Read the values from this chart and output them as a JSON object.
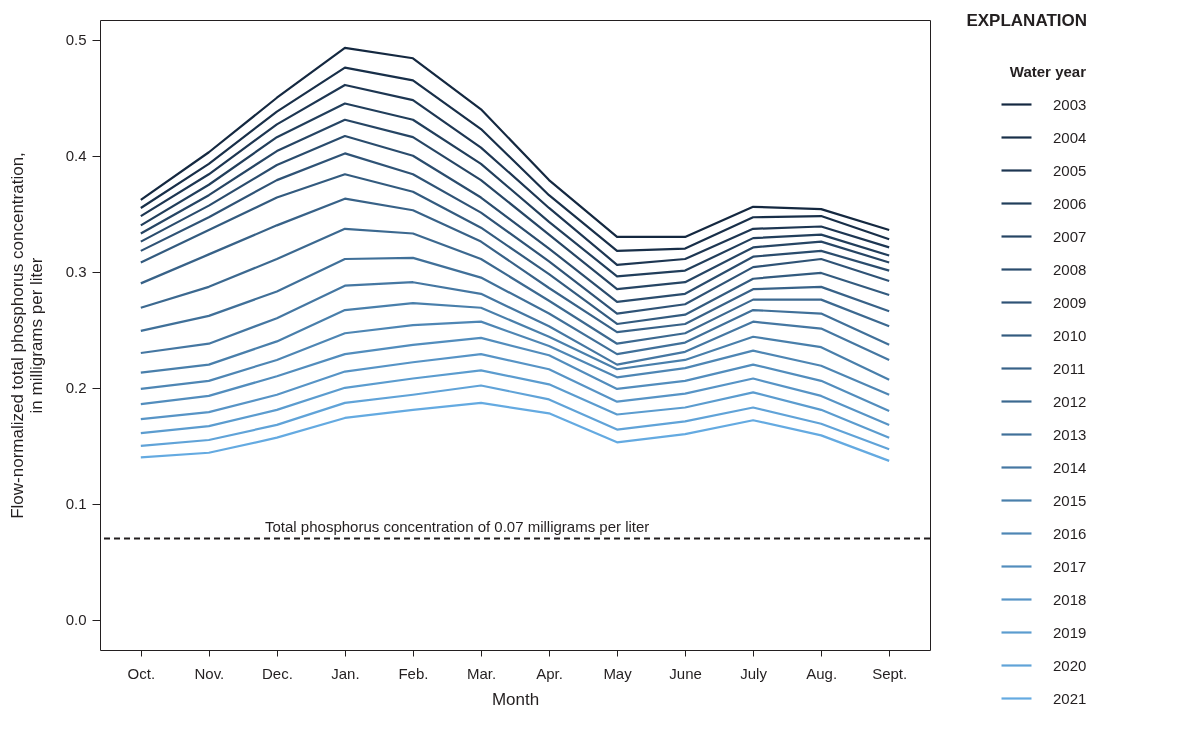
{
  "chart_data": {
    "type": "line",
    "categories": [
      "Oct.",
      "Nov.",
      "Dec.",
      "Jan.",
      "Feb.",
      "Mar.",
      "Apr.",
      "May",
      "June",
      "July",
      "Aug.",
      "Sept."
    ],
    "xlabel": "Month",
    "ylabel": "Flow-normalized total phosphorus concentration, in milligrams per liter",
    "legend_title": "Water year",
    "annotations": [
      "EXPLANATION"
    ],
    "ylim": [
      -0.026,
      0.517
    ],
    "yticks": [
      {
        "value": 0,
        "label": "0.0"
      },
      0.1,
      0.2,
      0.3,
      0.4,
      0.5
    ],
    "grid": false,
    "legend": "right",
    "line_style": "solid",
    "ref_lines": [
      {
        "axis": "y",
        "value": 0.07,
        "label": "Total phosphorus concentration of 0.07 milligrams per liter",
        "color": "#231f20",
        "line_style": "dashed"
      }
    ],
    "series": [
      {
        "name": "2003",
        "color": "#142840",
        "values": [
          0.362,
          0.403,
          0.45,
          0.493,
          0.484,
          0.44,
          0.379,
          0.33,
          0.33,
          0.356,
          0.354,
          0.336
        ]
      },
      {
        "name": "2004",
        "color": "#182f49",
        "values": [
          0.355,
          0.393,
          0.438,
          0.476,
          0.465,
          0.423,
          0.366,
          0.318,
          0.32,
          0.347,
          0.348,
          0.328
        ]
      },
      {
        "name": "2005",
        "color": "#1d3652",
        "values": [
          0.348,
          0.384,
          0.427,
          0.461,
          0.448,
          0.407,
          0.355,
          0.306,
          0.311,
          0.337,
          0.339,
          0.321
        ]
      },
      {
        "name": "2006",
        "color": "#213e5b",
        "values": [
          0.34,
          0.375,
          0.416,
          0.445,
          0.431,
          0.393,
          0.343,
          0.296,
          0.301,
          0.329,
          0.332,
          0.314
        ]
      },
      {
        "name": "2007",
        "color": "#264564",
        "values": [
          0.333,
          0.366,
          0.404,
          0.431,
          0.416,
          0.379,
          0.332,
          0.285,
          0.291,
          0.321,
          0.326,
          0.308
        ]
      },
      {
        "name": "2008",
        "color": "#2a4c6d",
        "values": [
          0.326,
          0.357,
          0.392,
          0.417,
          0.4,
          0.364,
          0.32,
          0.274,
          0.281,
          0.313,
          0.318,
          0.301
        ]
      },
      {
        "name": "2009",
        "color": "#2f5376",
        "values": [
          0.318,
          0.347,
          0.379,
          0.402,
          0.384,
          0.351,
          0.309,
          0.264,
          0.272,
          0.304,
          0.311,
          0.292
        ]
      },
      {
        "name": "2010",
        "color": "#335b7f",
        "values": [
          0.308,
          0.336,
          0.364,
          0.384,
          0.369,
          0.338,
          0.298,
          0.255,
          0.263,
          0.294,
          0.299,
          0.28
        ]
      },
      {
        "name": "2011",
        "color": "#386288",
        "values": [
          0.29,
          0.315,
          0.34,
          0.363,
          0.353,
          0.326,
          0.286,
          0.248,
          0.255,
          0.285,
          0.287,
          0.266
        ]
      },
      {
        "name": "2012",
        "color": "#3c6990",
        "values": [
          0.269,
          0.287,
          0.311,
          0.337,
          0.333,
          0.311,
          0.275,
          0.238,
          0.247,
          0.276,
          0.276,
          0.253
        ]
      },
      {
        "name": "2013",
        "color": "#407099",
        "values": [
          0.249,
          0.262,
          0.283,
          0.311,
          0.312,
          0.295,
          0.264,
          0.229,
          0.239,
          0.267,
          0.264,
          0.237
        ]
      },
      {
        "name": "2014",
        "color": "#4577a2",
        "values": [
          0.23,
          0.238,
          0.26,
          0.288,
          0.291,
          0.281,
          0.253,
          0.22,
          0.231,
          0.257,
          0.251,
          0.224
        ]
      },
      {
        "name": "2015",
        "color": "#497fab",
        "values": [
          0.213,
          0.22,
          0.24,
          0.267,
          0.273,
          0.269,
          0.244,
          0.216,
          0.224,
          0.244,
          0.235,
          0.207
        ]
      },
      {
        "name": "2016",
        "color": "#4e86b4",
        "values": [
          0.199,
          0.206,
          0.224,
          0.247,
          0.254,
          0.257,
          0.236,
          0.209,
          0.217,
          0.232,
          0.219,
          0.194
        ]
      },
      {
        "name": "2017",
        "color": "#528dbd",
        "values": [
          0.186,
          0.193,
          0.21,
          0.229,
          0.237,
          0.243,
          0.228,
          0.199,
          0.206,
          0.22,
          0.206,
          0.18
        ]
      },
      {
        "name": "2018",
        "color": "#5794c6",
        "values": [
          0.173,
          0.179,
          0.194,
          0.214,
          0.222,
          0.229,
          0.216,
          0.188,
          0.195,
          0.208,
          0.193,
          0.168
        ]
      },
      {
        "name": "2019",
        "color": "#5b9ccf",
        "values": [
          0.161,
          0.167,
          0.181,
          0.2,
          0.208,
          0.215,
          0.203,
          0.177,
          0.183,
          0.196,
          0.181,
          0.157
        ]
      },
      {
        "name": "2020",
        "color": "#60a3d8",
        "values": [
          0.15,
          0.155,
          0.168,
          0.187,
          0.194,
          0.202,
          0.19,
          0.164,
          0.171,
          0.183,
          0.169,
          0.147
        ]
      },
      {
        "name": "2021",
        "color": "#64aae1",
        "values": [
          0.14,
          0.144,
          0.157,
          0.174,
          0.181,
          0.187,
          0.178,
          0.153,
          0.16,
          0.172,
          0.159,
          0.137
        ]
      }
    ]
  }
}
